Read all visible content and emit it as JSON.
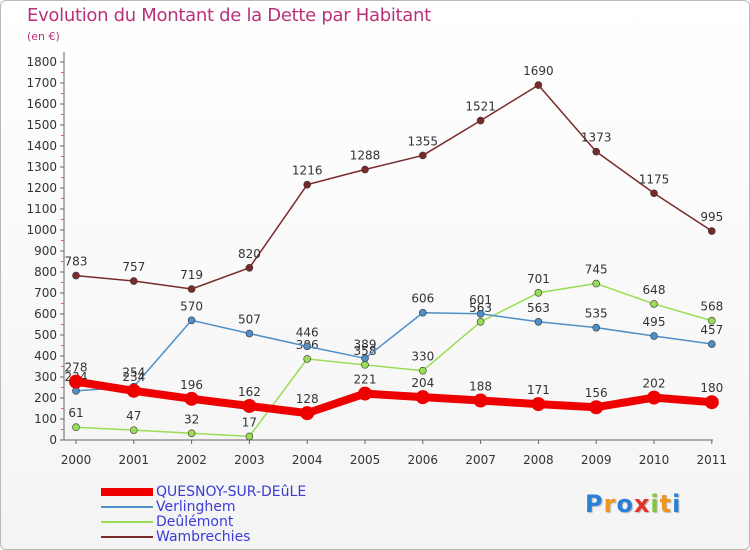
{
  "chart_data": {
    "type": "line",
    "title": "Evolution du Montant de la Dette par Habitant",
    "unit": "(en €)",
    "categories": [
      "2000",
      "2001",
      "2002",
      "2003",
      "2004",
      "2005",
      "2006",
      "2007",
      "2008",
      "2009",
      "2010",
      "2011"
    ],
    "ylim": [
      0,
      1800
    ],
    "yticks": [
      "0",
      "100",
      "200",
      "300",
      "400",
      "500",
      "600",
      "700",
      "800",
      "900",
      "1000",
      "1100",
      "1200",
      "1300",
      "1400",
      "1500",
      "1600",
      "1700",
      "1800"
    ],
    "grid": false,
    "legend_position": "bottom-left",
    "series": [
      {
        "name": "QUESNOY-SUR-DEûLE",
        "color": "#ee0000",
        "values": [
          278,
          234,
          196,
          162,
          128,
          221,
          204,
          188,
          171,
          156,
          202,
          180
        ]
      },
      {
        "name": "Verlinghem",
        "color": "#4f8fc8",
        "values": [
          234,
          254,
          570,
          507,
          446,
          389,
          606,
          601,
          563,
          535,
          495,
          457
        ]
      },
      {
        "name": "Deûlémont",
        "color": "#99dd55",
        "values": [
          61,
          47,
          32,
          17,
          386,
          358,
          330,
          563,
          701,
          745,
          648,
          568
        ]
      },
      {
        "name": "Wambrechies",
        "color": "#7a2a2a",
        "values": [
          783,
          757,
          719,
          820,
          1216,
          1288,
          1355,
          1521,
          1690,
          1373,
          1175,
          995
        ]
      }
    ]
  },
  "branding": {
    "text": "Proxiti",
    "letter_colors": [
      "#2a7fd6",
      "#f0961e",
      "#2a7fd6",
      "#e0342a",
      "#86c540",
      "#f0961e",
      "#2a7fd6"
    ]
  }
}
